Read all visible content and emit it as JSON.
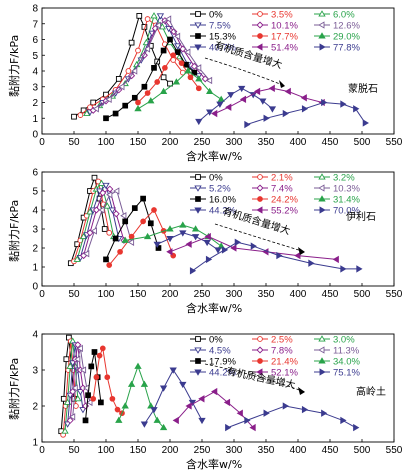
{
  "y_axis_label": "黏附力F/kPa",
  "x_axis_label": "含水率w/%",
  "annotation_text": "有机质含量增大",
  "chart_data": [
    {
      "type": "line",
      "mineral": "蒙脱石",
      "xlim": [
        0,
        550
      ],
      "ylim": [
        0,
        8
      ],
      "xticks": [
        "0",
        "50",
        "100",
        "150",
        "200",
        "250",
        "300",
        "350",
        "400",
        "450",
        "500",
        "550"
      ],
      "yticks": [
        "0",
        "1",
        "2",
        "3",
        "4",
        "5",
        "6",
        "7",
        "8"
      ],
      "xlabel": "含水率w/%",
      "ylabel": "黏附力F/kPa",
      "annotation": "有机质含量增大",
      "series": [
        {
          "name": "0%",
          "color": "#000000",
          "marker": "square-open",
          "x": [
            50,
            65,
            80,
            100,
            120,
            140,
            152,
            160,
            170,
            180,
            190,
            200
          ],
          "y": [
            1.1,
            1.5,
            2.0,
            2.5,
            3.5,
            5.8,
            7.5,
            6.8,
            5.6,
            4.6,
            3.6,
            3.2
          ]
        },
        {
          "name": "3.5%",
          "color": "#e8362f",
          "marker": "circle-open",
          "x": [
            60,
            75,
            95,
            115,
            135,
            150,
            165,
            178,
            192,
            205,
            220
          ],
          "y": [
            1.2,
            1.7,
            2.2,
            2.8,
            4.0,
            5.3,
            7.3,
            6.9,
            5.7,
            4.7,
            3.9
          ]
        },
        {
          "name": "6.0%",
          "color": "#29a34a",
          "marker": "triangle-open",
          "x": [
            70,
            90,
            110,
            130,
            148,
            163,
            175,
            188,
            200,
            215,
            232
          ],
          "y": [
            1.3,
            1.8,
            2.4,
            3.2,
            4.4,
            5.8,
            7.5,
            6.8,
            5.8,
            4.9,
            4.0
          ]
        },
        {
          "name": "7.5%",
          "color": "#3b3b8f",
          "marker": "triangle-down-open",
          "x": [
            75,
            95,
            115,
            135,
            155,
            172,
            185,
            198,
            212,
            228,
            245
          ],
          "y": [
            1.4,
            2.0,
            2.6,
            3.5,
            4.7,
            6.4,
            7.5,
            6.7,
            5.6,
            4.4,
            3.7
          ]
        },
        {
          "name": "10.1%",
          "color": "#8a1f8a",
          "marker": "diamond-open",
          "x": [
            80,
            100,
            120,
            140,
            160,
            177,
            192,
            206,
            220,
            238,
            255
          ],
          "y": [
            1.5,
            2.1,
            2.8,
            3.7,
            5.0,
            6.7,
            7.2,
            6.5,
            5.4,
            4.3,
            3.5
          ]
        },
        {
          "name": "12.6%",
          "color": "#7a5c96",
          "marker": "triangle-left-open",
          "x": [
            85,
            105,
            125,
            145,
            165,
            182,
            198,
            212,
            228,
            245,
            262
          ],
          "y": [
            1.6,
            2.2,
            3.0,
            4.0,
            5.4,
            6.9,
            7.3,
            6.2,
            5.2,
            4.2,
            3.4
          ]
        },
        {
          "name": "15.3%",
          "color": "#000000",
          "marker": "square-filled",
          "x": [
            100,
            115,
            130,
            145,
            160,
            175,
            190,
            200,
            212,
            225,
            238
          ],
          "y": [
            1.0,
            1.3,
            1.8,
            2.3,
            3.0,
            4.2,
            5.3,
            6.0,
            5.2,
            4.4,
            3.9
          ]
        },
        {
          "name": "17.7%",
          "color": "#e8362f",
          "marker": "circle-filled",
          "x": [
            150,
            165,
            180,
            192,
            205,
            218,
            232,
            245
          ],
          "y": [
            2.0,
            2.6,
            3.3,
            4.2,
            5.0,
            4.5,
            3.6,
            2.9
          ]
        },
        {
          "name": "29.0%",
          "color": "#29a34a",
          "marker": "triangle-filled",
          "x": [
            150,
            170,
            190,
            210,
            228,
            245,
            262,
            280
          ],
          "y": [
            1.6,
            2.1,
            2.7,
            3.3,
            4.0,
            3.5,
            2.7,
            2.2
          ]
        },
        {
          "name": "40.7%",
          "color": "#3b3b8f",
          "marker": "triangle-down-filled",
          "x": [
            245,
            262,
            278,
            295,
            312,
            330,
            345,
            360
          ],
          "y": [
            0.8,
            1.4,
            1.9,
            2.5,
            2.9,
            2.5,
            2.1,
            1.6
          ]
        },
        {
          "name": "51.4%",
          "color": "#8a1f8a",
          "marker": "triangle-left-filled",
          "x": [
            270,
            292,
            315,
            337,
            360,
            385,
            410,
            438
          ],
          "y": [
            1.3,
            1.7,
            2.2,
            2.7,
            2.9,
            2.7,
            2.3,
            2.0
          ]
        },
        {
          "name": "77.8%",
          "color": "#3b3b8f",
          "marker": "triangle-right-filled",
          "x": [
            320,
            350,
            380,
            410,
            440,
            470,
            490,
            505
          ],
          "y": [
            0.6,
            1.0,
            1.3,
            1.6,
            2.0,
            1.9,
            1.6,
            0.7
          ]
        }
      ]
    },
    {
      "type": "line",
      "mineral": "伊利石",
      "xlim": [
        0,
        550
      ],
      "ylim": [
        0,
        6
      ],
      "xticks": [
        "0",
        "50",
        "100",
        "150",
        "200",
        "250",
        "300",
        "350",
        "400",
        "450",
        "500",
        "550"
      ],
      "yticks": [
        "0",
        "1",
        "2",
        "3",
        "4",
        "5",
        "6"
      ],
      "xlabel": "含水率w/%",
      "ylabel": "黏附力F/kPa",
      "annotation": "有机质含量增大",
      "series": [
        {
          "name": "0%",
          "color": "#000000",
          "marker": "square-open",
          "x": [
            45,
            55,
            65,
            75,
            82,
            90,
            98
          ],
          "y": [
            1.2,
            2.2,
            3.6,
            5.0,
            5.7,
            4.6,
            3.0
          ]
        },
        {
          "name": "2.1%",
          "color": "#e8362f",
          "marker": "circle-open",
          "x": [
            50,
            60,
            70,
            80,
            88,
            96,
            105
          ],
          "y": [
            1.3,
            2.4,
            3.7,
            5.0,
            5.5,
            4.3,
            2.8
          ]
        },
        {
          "name": "3.2%",
          "color": "#29a34a",
          "marker": "triangle-open",
          "x": [
            55,
            65,
            75,
            85,
            93,
            102,
            112
          ],
          "y": [
            1.4,
            2.6,
            3.9,
            5.1,
            5.4,
            4.2,
            2.6
          ]
        },
        {
          "name": "5.2%",
          "color": "#3b3b8f",
          "marker": "triangle-down-open",
          "x": [
            60,
            70,
            80,
            90,
            100,
            110,
            120
          ],
          "y": [
            1.5,
            2.7,
            4.0,
            5.0,
            5.3,
            4.0,
            2.5
          ]
        },
        {
          "name": "7.4%",
          "color": "#8a1f8a",
          "marker": "diamond-open",
          "x": [
            65,
            75,
            85,
            95,
            106,
            116,
            128
          ],
          "y": [
            1.6,
            2.8,
            4.0,
            4.9,
            5.1,
            3.8,
            2.4
          ]
        },
        {
          "name": "10.3%",
          "color": "#7a5c96",
          "marker": "triangle-left-open",
          "x": [
            70,
            82,
            94,
            106,
            117,
            128,
            140
          ],
          "y": [
            1.7,
            2.9,
            4.0,
            4.8,
            5.0,
            3.7,
            2.3
          ]
        },
        {
          "name": "16.0%",
          "color": "#000000",
          "marker": "square-filled",
          "x": [
            100,
            115,
            130,
            145,
            158,
            170,
            182
          ],
          "y": [
            1.4,
            2.5,
            3.4,
            4.1,
            4.6,
            3.3,
            2.0
          ]
        },
        {
          "name": "24.2%",
          "color": "#e8362f",
          "marker": "circle-filled",
          "x": [
            105,
            122,
            140,
            158,
            175,
            190,
            205
          ],
          "y": [
            1.1,
            1.8,
            2.6,
            3.4,
            4.0,
            2.9,
            1.6
          ]
        },
        {
          "name": "31.4%",
          "color": "#29a34a",
          "marker": "triangle-filled",
          "x": [
            130,
            165,
            200,
            220,
            240,
            260,
            280
          ],
          "y": [
            2.4,
            2.6,
            3.0,
            3.2,
            3.0,
            2.6,
            2.1
          ]
        },
        {
          "name": "44.2%",
          "color": "#3b3b8f",
          "marker": "triangle-down-filled",
          "x": [
            180,
            200,
            220,
            240,
            258,
            275
          ],
          "y": [
            2.2,
            2.5,
            2.8,
            2.6,
            2.3,
            1.9
          ]
        },
        {
          "name": "55.2%",
          "color": "#8a1f8a",
          "marker": "triangle-left-filled",
          "x": [
            200,
            230,
            260,
            300,
            350,
            400,
            460
          ],
          "y": [
            1.8,
            2.2,
            2.6,
            2.0,
            1.8,
            1.6,
            1.4
          ]
        },
        {
          "name": "70.0%",
          "color": "#3b3b8f",
          "marker": "triangle-right-filled",
          "x": [
            235,
            260,
            285,
            305,
            330,
            370,
            420,
            470,
            495
          ],
          "y": [
            0.8,
            1.4,
            1.9,
            2.3,
            2.1,
            1.6,
            1.2,
            0.9,
            0.9
          ]
        }
      ]
    },
    {
      "type": "line",
      "mineral": "高岭土",
      "xlim": [
        0,
        550
      ],
      "ylim": [
        1,
        4
      ],
      "xticks": [
        "0",
        "50",
        "100",
        "150",
        "200",
        "250",
        "300",
        "350",
        "400",
        "450",
        "500",
        "550"
      ],
      "yticks": [
        "1",
        "2",
        "3",
        "4"
      ],
      "xlabel": "含水率w/%",
      "ylabel": "黏附力F/kPa",
      "annotation": "有机质含量增大",
      "series": [
        {
          "name": "0%",
          "color": "#000000",
          "marker": "square-open",
          "x": [
            30,
            34,
            38,
            42,
            46,
            50
          ],
          "y": [
            1.3,
            2.2,
            3.3,
            3.9,
            3.1,
            2.2
          ]
        },
        {
          "name": "2.5%",
          "color": "#e8362f",
          "marker": "circle-open",
          "x": [
            33,
            37,
            41,
            45,
            49,
            53
          ],
          "y": [
            1.2,
            2.0,
            3.0,
            3.8,
            3.0,
            2.0
          ]
        },
        {
          "name": "3.0%",
          "color": "#29a34a",
          "marker": "triangle-open",
          "x": [
            36,
            40,
            44,
            48,
            52,
            56
          ],
          "y": [
            1.3,
            2.1,
            3.1,
            3.8,
            3.1,
            2.2
          ]
        },
        {
          "name": "4.5%",
          "color": "#3b3b8f",
          "marker": "triangle-down-open",
          "x": [
            40,
            44,
            48,
            52,
            56,
            60,
            64
          ],
          "y": [
            1.5,
            2.3,
            3.2,
            3.7,
            3.0,
            2.4,
            1.9
          ]
        },
        {
          "name": "7.8%",
          "color": "#8a1f8a",
          "marker": "diamond-open",
          "x": [
            44,
            48,
            52,
            56,
            60,
            64,
            68
          ],
          "y": [
            1.6,
            2.4,
            3.3,
            3.7,
            3.0,
            2.5,
            2.0
          ]
        },
        {
          "name": "11.3%",
          "color": "#7a5c96",
          "marker": "triangle-left-open",
          "x": [
            48,
            52,
            56,
            60,
            65,
            70,
            75
          ],
          "y": [
            1.7,
            2.5,
            3.3,
            3.6,
            3.0,
            2.5,
            2.1
          ]
        },
        {
          "name": "17.9%",
          "color": "#000000",
          "marker": "square-filled",
          "x": [
            68,
            72,
            77,
            82,
            87,
            92
          ],
          "y": [
            1.6,
            2.3,
            3.1,
            3.5,
            2.8,
            2.1
          ]
        },
        {
          "name": "21.4%",
          "color": "#e8362f",
          "marker": "circle-filled",
          "x": [
            80,
            85,
            90,
            95,
            102,
            110,
            118,
            125
          ],
          "y": [
            2.2,
            2.8,
            3.4,
            3.6,
            2.8,
            2.2,
            1.9,
            1.8
          ]
        },
        {
          "name": "34.0%",
          "color": "#29a34a",
          "marker": "triangle-filled",
          "x": [
            120,
            130,
            140,
            150,
            160,
            170,
            180,
            190
          ],
          "y": [
            1.6,
            2.0,
            2.6,
            3.1,
            2.6,
            2.0,
            1.6,
            1.4
          ]
        },
        {
          "name": "44.2%",
          "color": "#3b3b8f",
          "marker": "triangle-down-filled",
          "x": [
            160,
            175,
            190,
            205,
            220,
            235,
            250
          ],
          "y": [
            1.5,
            1.9,
            2.5,
            3.0,
            2.6,
            2.1,
            1.6
          ]
        },
        {
          "name": "52.1%",
          "color": "#8a1f8a",
          "marker": "triangle-left-filled",
          "x": [
            210,
            230,
            250,
            270,
            290,
            310,
            330
          ],
          "y": [
            1.6,
            2.0,
            2.2,
            2.4,
            2.1,
            1.8,
            1.4
          ]
        },
        {
          "name": "75.1%",
          "color": "#3b3b8f",
          "marker": "triangle-right-filled",
          "x": [
            290,
            320,
            350,
            380,
            410,
            440,
            470,
            490
          ],
          "y": [
            1.4,
            1.6,
            1.8,
            2.0,
            1.9,
            1.8,
            1.6,
            1.4
          ]
        }
      ]
    }
  ]
}
